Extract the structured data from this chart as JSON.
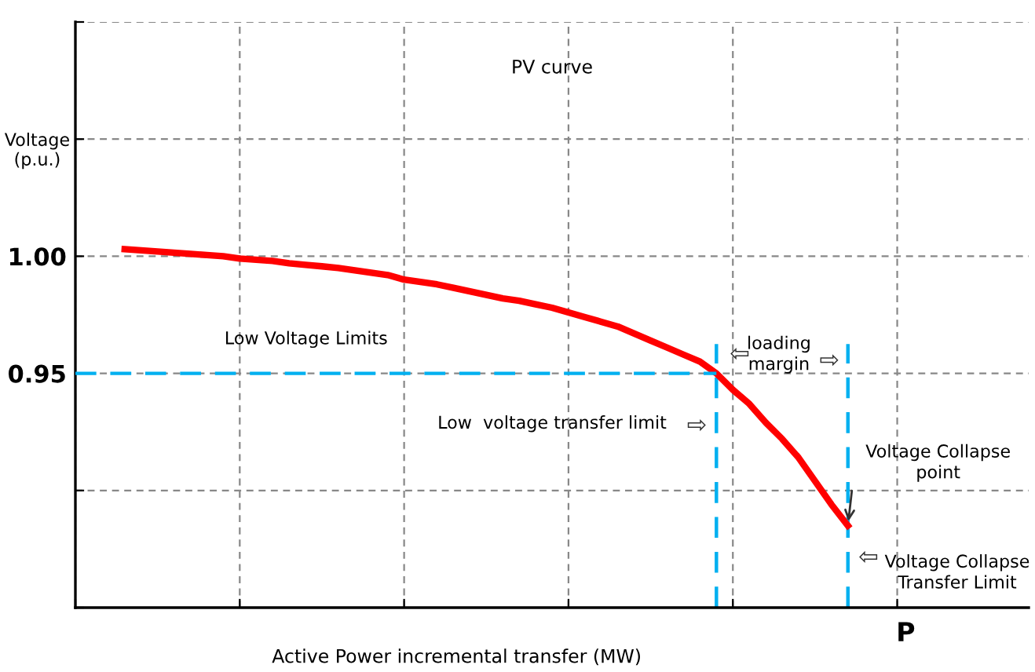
{
  "chart_data": {
    "type": "line",
    "title": "PV curve",
    "xlabel": "Active Power incremental transfer (MW)",
    "ylabel": "Voltage\n(p.u.)",
    "categories": [
      null,
      null,
      null,
      null,
      null,
      null,
      null,
      null,
      null,
      null,
      null,
      null,
      null,
      null,
      null,
      null,
      null,
      null,
      null,
      null,
      null,
      null,
      null,
      null,
      null,
      null,
      null,
      null,
      null,
      null,
      null,
      null,
      null,
      null,
      null,
      null,
      null,
      null,
      null,
      null,
      null,
      null,
      null,
      null,
      null,
      null,
      null,
      null,
      null,
      null,
      null,
      null,
      null,
      null,
      null,
      null,
      null,
      null,
      null
    ],
    "ylim": [
      0.85,
      1.1
    ],
    "yticks": [
      {
        "value": 0.85,
        "label": null
      },
      {
        "value": 0.9,
        "label": null
      },
      0.95,
      {
        "value": 1,
        "label": "1.00"
      },
      {
        "value": 1.05,
        "label": null
      },
      {
        "value": 1.1,
        "label": null
      }
    ],
    "tick_labels": "y",
    "grid": true,
    "marker": "none",
    "series": [
      {
        "color": "#ff0000",
        "line_style": "solid",
        "values": [
          null,
          null,
          null,
          1.003,
          1.0025,
          1.002,
          1.0015,
          1.001,
          1.0005,
          1.0,
          0.999,
          0.9985,
          0.998,
          0.997,
          0.9963,
          0.9957,
          0.995,
          0.994,
          0.993,
          0.992,
          0.99,
          0.989,
          0.988,
          0.9865,
          0.985,
          0.9835,
          0.982,
          0.981,
          0.9795,
          0.978,
          0.976,
          0.974,
          0.972,
          0.97,
          0.967,
          0.964,
          0.961,
          0.958,
          0.955,
          0.95,
          0.943,
          0.937,
          0.929,
          0.922,
          0.914,
          0.904,
          0.894,
          0.885,
          null,
          null,
          null,
          null,
          null,
          null,
          null,
          null,
          null,
          null,
          null
        ]
      },
      {
        "color": "#00b0f0",
        "line_style": "dashed",
        "values": [
          0.95,
          0.95,
          0.95,
          0.95,
          0.95,
          0.95,
          0.95,
          0.95,
          0.95,
          0.95,
          0.95,
          0.95,
          0.95,
          0.95,
          0.95,
          0.95,
          0.95,
          0.95,
          0.95,
          0.95,
          0.95,
          0.95,
          0.95,
          0.95,
          0.95,
          0.95,
          0.95,
          0.95,
          0.95,
          0.95,
          0.95,
          0.95,
          0.95,
          0.95,
          0.95,
          0.95,
          0.95,
          0.95,
          0.95,
          0.95,
          null,
          null,
          null,
          null,
          null,
          null,
          null,
          null,
          null,
          null,
          null,
          null,
          null,
          null,
          null,
          null,
          null,
          null,
          null
        ]
      }
    ],
    "annotations": [
      "Low Voltage Limits",
      "Low  voltage transfer limit",
      "⇨",
      "loading\nmargin",
      "⇦",
      "⇨",
      "Voltage Collapse\npoint",
      "⇦",
      "Voltage Collapse\nTransfer Limit",
      "P"
    ]
  }
}
